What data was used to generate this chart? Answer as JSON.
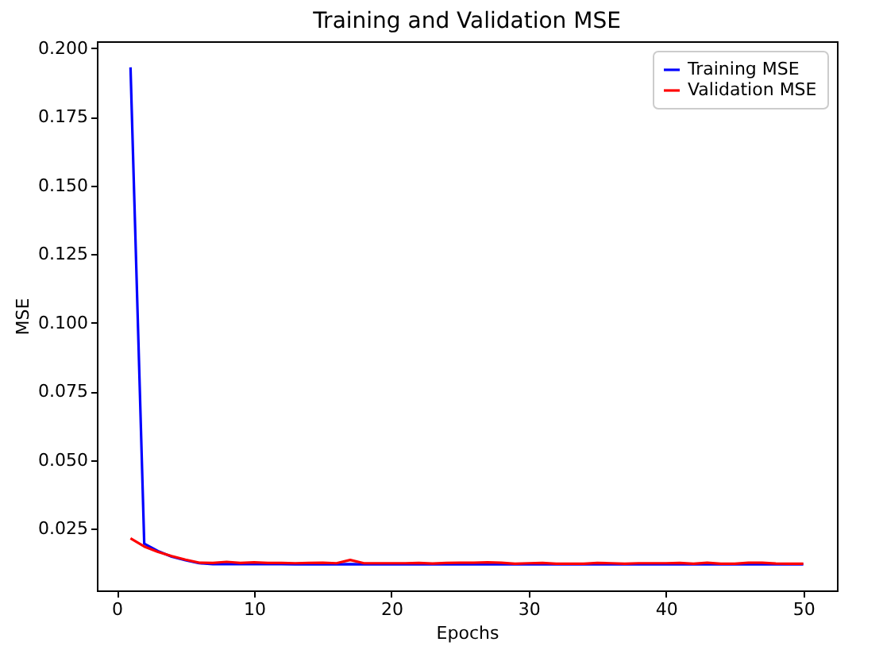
{
  "chart_data": {
    "type": "line",
    "title": "Training and Validation MSE",
    "xlabel": "Epochs",
    "ylabel": "MSE",
    "x": [
      1,
      2,
      3,
      4,
      5,
      6,
      7,
      8,
      9,
      10,
      11,
      12,
      13,
      14,
      15,
      16,
      17,
      18,
      19,
      20,
      21,
      22,
      23,
      24,
      25,
      26,
      27,
      28,
      29,
      30,
      31,
      32,
      33,
      34,
      35,
      36,
      37,
      38,
      39,
      40,
      41,
      42,
      43,
      44,
      45,
      46,
      47,
      48,
      49,
      50
    ],
    "series": [
      {
        "name": "Training MSE",
        "color": "#0000ff",
        "values": [
          0.193,
          0.0195,
          0.0168,
          0.0148,
          0.0135,
          0.0124,
          0.0121,
          0.0121,
          0.0121,
          0.0121,
          0.0121,
          0.0121,
          0.012,
          0.012,
          0.0121,
          0.012,
          0.0121,
          0.012,
          0.012,
          0.012,
          0.012,
          0.012,
          0.012,
          0.012,
          0.012,
          0.012,
          0.012,
          0.012,
          0.012,
          0.012,
          0.012,
          0.012,
          0.012,
          0.012,
          0.012,
          0.012,
          0.012,
          0.012,
          0.012,
          0.012,
          0.012,
          0.012,
          0.012,
          0.012,
          0.012,
          0.012,
          0.012,
          0.012,
          0.012,
          0.012
        ]
      },
      {
        "name": "Validation MSE",
        "color": "#ff0000",
        "values": [
          0.0215,
          0.0185,
          0.0165,
          0.015,
          0.0137,
          0.0126,
          0.0125,
          0.0129,
          0.0125,
          0.0127,
          0.0125,
          0.0125,
          0.0124,
          0.0125,
          0.0126,
          0.0124,
          0.0136,
          0.0124,
          0.0124,
          0.0124,
          0.0124,
          0.0125,
          0.0123,
          0.0125,
          0.0126,
          0.0126,
          0.0127,
          0.0126,
          0.0122,
          0.0124,
          0.0125,
          0.0122,
          0.0122,
          0.0122,
          0.0125,
          0.0124,
          0.0122,
          0.0124,
          0.0124,
          0.0124,
          0.0125,
          0.0122,
          0.0126,
          0.0122,
          0.0122,
          0.0126,
          0.0126,
          0.0123,
          0.0122,
          0.0122
        ]
      }
    ],
    "xlim": [
      -1.45,
      52.45
    ],
    "xticks": [
      0,
      10,
      20,
      30,
      40,
      50
    ],
    "ylim": [
      0.0025,
      0.2025
    ],
    "yticks": [
      {
        "value": 0.025,
        "label": "0.025"
      },
      {
        "value": 0.05,
        "label": "0.050"
      },
      {
        "value": 0.075,
        "label": "0.075"
      },
      {
        "value": 0.1,
        "label": "0.100"
      },
      {
        "value": 0.125,
        "label": "0.125"
      },
      {
        "value": 0.15,
        "label": "0.150"
      },
      {
        "value": 0.175,
        "label": "0.175"
      },
      {
        "value": 0.2,
        "label": "0.200"
      }
    ],
    "legend": "top right",
    "grid": false,
    "marker": "none",
    "line_style": "solid"
  }
}
